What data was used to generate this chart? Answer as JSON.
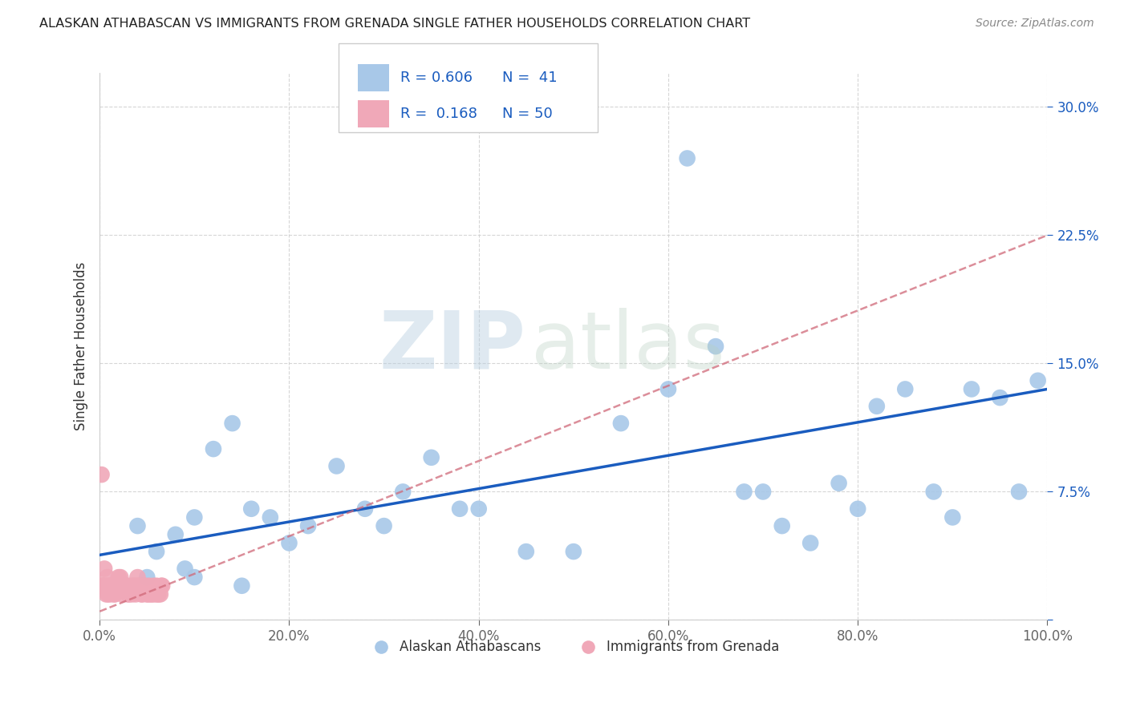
{
  "title": "ALASKAN ATHABASCAN VS IMMIGRANTS FROM GRENADA SINGLE FATHER HOUSEHOLDS CORRELATION CHART",
  "source": "Source: ZipAtlas.com",
  "ylabel": "Single Father Households",
  "xlim": [
    0,
    1.0
  ],
  "ylim": [
    0,
    0.32
  ],
  "blue_color": "#a8c8e8",
  "pink_color": "#f0a8b8",
  "line_blue": "#1a5cbf",
  "line_pink": "#d06878",
  "blue_scatter_x": [
    0.04,
    0.06,
    0.08,
    0.09,
    0.1,
    0.12,
    0.14,
    0.16,
    0.18,
    0.2,
    0.22,
    0.25,
    0.28,
    0.3,
    0.32,
    0.35,
    0.38,
    0.4,
    0.45,
    0.5,
    0.55,
    0.6,
    0.65,
    0.68,
    0.7,
    0.72,
    0.75,
    0.78,
    0.8,
    0.82,
    0.85,
    0.88,
    0.9,
    0.92,
    0.95,
    0.97,
    0.99,
    0.05,
    0.1,
    0.15,
    0.62
  ],
  "blue_scatter_y": [
    0.055,
    0.04,
    0.05,
    0.03,
    0.06,
    0.1,
    0.115,
    0.065,
    0.06,
    0.045,
    0.055,
    0.09,
    0.065,
    0.055,
    0.075,
    0.095,
    0.065,
    0.065,
    0.04,
    0.04,
    0.115,
    0.135,
    0.16,
    0.075,
    0.075,
    0.055,
    0.045,
    0.08,
    0.065,
    0.125,
    0.135,
    0.075,
    0.06,
    0.135,
    0.13,
    0.075,
    0.14,
    0.025,
    0.025,
    0.02,
    0.27
  ],
  "pink_scatter_x": [
    0.005,
    0.008,
    0.01,
    0.012,
    0.015,
    0.018,
    0.02,
    0.022,
    0.025,
    0.028,
    0.03,
    0.032,
    0.035,
    0.038,
    0.04,
    0.042,
    0.045,
    0.048,
    0.05,
    0.052,
    0.055,
    0.058,
    0.06,
    0.062,
    0.065,
    0.003,
    0.004,
    0.006,
    0.007,
    0.009,
    0.011,
    0.013,
    0.016,
    0.019,
    0.021,
    0.024,
    0.027,
    0.031,
    0.034,
    0.037,
    0.041,
    0.044,
    0.047,
    0.051,
    0.054,
    0.057,
    0.061,
    0.064,
    0.002,
    0.066
  ],
  "pink_scatter_y": [
    0.03,
    0.025,
    0.02,
    0.02,
    0.015,
    0.02,
    0.025,
    0.025,
    0.02,
    0.02,
    0.015,
    0.02,
    0.02,
    0.015,
    0.025,
    0.02,
    0.015,
    0.02,
    0.015,
    0.02,
    0.015,
    0.015,
    0.02,
    0.015,
    0.02,
    0.02,
    0.02,
    0.02,
    0.015,
    0.015,
    0.015,
    0.02,
    0.015,
    0.02,
    0.02,
    0.015,
    0.02,
    0.015,
    0.015,
    0.02,
    0.02,
    0.015,
    0.02,
    0.015,
    0.015,
    0.02,
    0.015,
    0.015,
    0.085,
    0.02
  ],
  "blue_line_x": [
    0.0,
    1.0
  ],
  "blue_line_y": [
    0.038,
    0.135
  ],
  "pink_line_x": [
    0.0,
    1.0
  ],
  "pink_line_y": [
    0.005,
    0.225
  ]
}
